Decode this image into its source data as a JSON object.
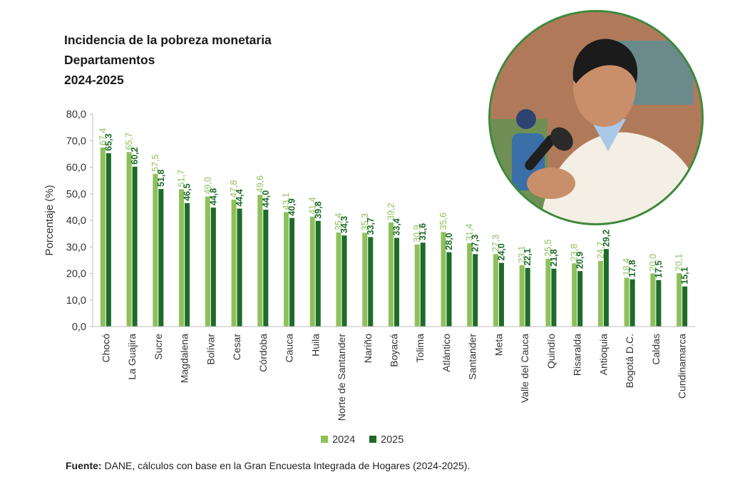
{
  "chart_data": {
    "type": "bar",
    "title": "Incidencia de la pobreza monetaria",
    "subtitle": "Departamentos",
    "period": "2024-2025",
    "ylabel": "Porcentaje (%)",
    "xlabel": "",
    "ylim": [
      0,
      80
    ],
    "yticks": [
      "0,0",
      "10,0",
      "20,0",
      "30,0",
      "40,0",
      "50,0",
      "60,0",
      "70,0",
      "80,0"
    ],
    "legend_position": "bottom",
    "grid": false,
    "categories": [
      "Chocó",
      "La Guajira",
      "Sucre",
      "Magdalena",
      "Bolívar",
      "Cesar",
      "Córdoba",
      "Cauca",
      "Huila",
      "Norte de Santander",
      "Nariño",
      "Boyacá",
      "Tolima",
      "Atlántico",
      "Santander",
      "Meta",
      "Valle del Cauca",
      "Quindío",
      "Risaralda",
      "Antioquia",
      "Bogotá D.C.",
      "Caldas",
      "Cundinamarca"
    ],
    "series": [
      {
        "name": "2024",
        "color": "#8dc05a",
        "values": [
          67.4,
          65.7,
          57.5,
          51.7,
          49.0,
          47.8,
          49.6,
          43.1,
          41.4,
          35.4,
          35.3,
          39.2,
          30.9,
          35.6,
          31.4,
          27.3,
          23.1,
          25.5,
          23.8,
          24.7,
          18.4,
          20.0,
          20.1
        ],
        "labels": [
          "67,4",
          "65,7",
          "57,5",
          "51,7",
          "49,0",
          "47,8",
          "49,6",
          "43,1",
          "41,4",
          "35,4",
          "35,3",
          "39,2",
          "30,9",
          "35,6",
          "31,4",
          "27,3",
          "23,1",
          "25,5",
          "23,8",
          "24,7",
          "18,4",
          "20,0",
          "20,1"
        ]
      },
      {
        "name": "2025",
        "color": "#1e6b2a",
        "values": [
          65.3,
          60.2,
          51.8,
          46.5,
          44.8,
          44.4,
          44.0,
          40.9,
          39.8,
          34.3,
          33.7,
          33.4,
          31.6,
          28.0,
          27.3,
          24.0,
          22.1,
          21.8,
          20.9,
          29.2,
          17.8,
          17.5,
          15.1
        ],
        "labels": [
          "65,3",
          "60,2",
          "51,8",
          "46,5",
          "44,8",
          "44,4",
          "44,0",
          "40,9",
          "39,8",
          "34,3",
          "33,7",
          "33,4",
          "31,6",
          "28,0",
          "27,3",
          "24,0",
          "22,1",
          "21,8",
          "20,9",
          "29,2",
          "17,8",
          "17,5",
          "15,1"
        ]
      }
    ]
  },
  "source": {
    "label": "Fuente:",
    "text": " DANE, cálculos con base en la Gran Encuesta Integrada de Hogares (2024-2025)."
  },
  "photo": {
    "colors": {
      "wall": "#b07a5a",
      "window": "#6b8a8c",
      "sweater": "#f3efe4",
      "skin": "#c98f6a",
      "hair": "#1c1b1b",
      "mic": "#1f1f1f",
      "frame": "#3b8a3b"
    }
  }
}
